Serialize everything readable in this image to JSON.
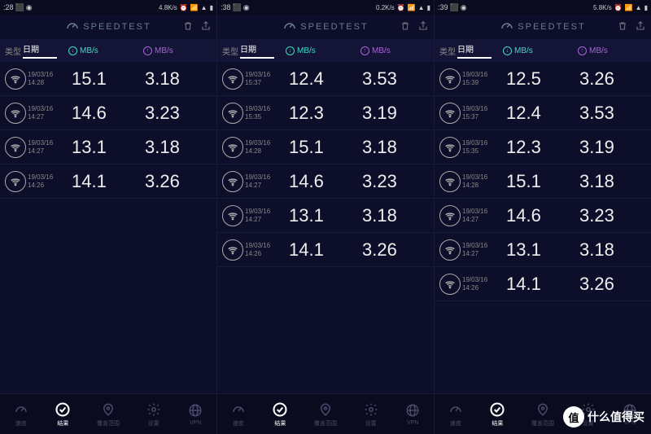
{
  "app_title": "SPEEDTEST",
  "columns": {
    "type": "类型",
    "date": "日期",
    "down_unit": "MB/s",
    "up_unit": "MB/s"
  },
  "colors": {
    "background": "#0d0e2a",
    "download": "#3bdbc7",
    "upload": "#a864d8",
    "text_primary": "#eee",
    "text_secondary": "#888"
  },
  "screens": [
    {
      "status": {
        "time": ":28",
        "speed": "4.8K/s"
      },
      "rows": [
        {
          "date": "19/03/16",
          "time": "14:28",
          "down": "15.1",
          "up": "3.18"
        },
        {
          "date": "19/03/16",
          "time": "14:27",
          "down": "14.6",
          "up": "3.23"
        },
        {
          "date": "19/03/16",
          "time": "14:27",
          "down": "13.1",
          "up": "3.18"
        },
        {
          "date": "19/03/16",
          "time": "14:26",
          "down": "14.1",
          "up": "3.26"
        }
      ]
    },
    {
      "status": {
        "time": ":38",
        "speed": "0.2K/s"
      },
      "rows": [
        {
          "date": "19/03/16",
          "time": "15:37",
          "down": "12.4",
          "up": "3.53"
        },
        {
          "date": "19/03/16",
          "time": "15:35",
          "down": "12.3",
          "up": "3.19"
        },
        {
          "date": "19/03/16",
          "time": "14:28",
          "down": "15.1",
          "up": "3.18"
        },
        {
          "date": "19/03/16",
          "time": "14:27",
          "down": "14.6",
          "up": "3.23"
        },
        {
          "date": "19/03/16",
          "time": "14:27",
          "down": "13.1",
          "up": "3.18"
        },
        {
          "date": "19/03/16",
          "time": "14:26",
          "down": "14.1",
          "up": "3.26"
        }
      ]
    },
    {
      "status": {
        "time": ":39",
        "speed": "5.8K/s"
      },
      "rows": [
        {
          "date": "19/03/16",
          "time": "15:39",
          "down": "12.5",
          "up": "3.26"
        },
        {
          "date": "19/03/16",
          "time": "15:37",
          "down": "12.4",
          "up": "3.53"
        },
        {
          "date": "19/03/16",
          "time": "15:35",
          "down": "12.3",
          "up": "3.19"
        },
        {
          "date": "19/03/16",
          "time": "14:28",
          "down": "15.1",
          "up": "3.18"
        },
        {
          "date": "19/03/16",
          "time": "14:27",
          "down": "14.6",
          "up": "3.23"
        },
        {
          "date": "19/03/16",
          "time": "14:27",
          "down": "13.1",
          "up": "3.18"
        },
        {
          "date": "19/03/16",
          "time": "14:26",
          "down": "14.1",
          "up": "3.26"
        }
      ]
    }
  ],
  "nav": {
    "speed": "速度",
    "results": "结果",
    "coverage": "覆盖范围",
    "settings": "设置",
    "vpn": "VPN"
  },
  "watermark": {
    "badge": "值",
    "text": "什么值得买"
  }
}
